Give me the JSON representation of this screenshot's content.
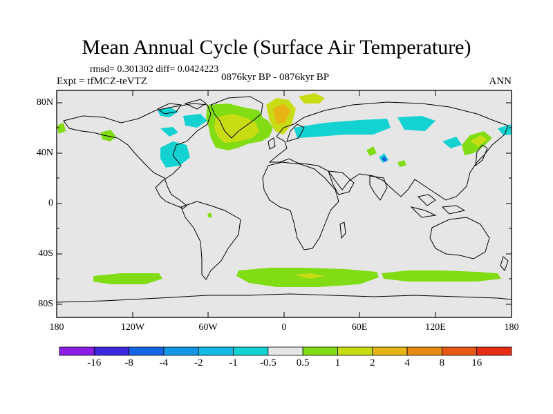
{
  "title": "Mean Annual Cycle (Surface Air Temperature)",
  "stats_line": "rmsd= 0.301302 diff= 0.0424223",
  "experiment": "Expt = tfMCZ-teVTZ",
  "period": "0876kyr BP - 0876kyr BP",
  "season": "ANN",
  "lat_labels": [
    "80N",
    "40N",
    "0",
    "40S",
    "80S"
  ],
  "lon_labels": [
    "180",
    "120W",
    "60W",
    "0",
    "60E",
    "120E",
    "180"
  ],
  "colorbar": {
    "labels": [
      "-16",
      "-8",
      "-4",
      "-2",
      "-1",
      "-0.5",
      "0.5",
      "1",
      "2",
      "4",
      "8",
      "16"
    ],
    "colors": [
      "#8c1ee6",
      "#3c28dc",
      "#1464e6",
      "#1496e6",
      "#14b9e6",
      "#14d2d2",
      "#e6e6e6",
      "#82dc14",
      "#c8dc14",
      "#e6b414",
      "#e68c14",
      "#e65a14",
      "#e62d14"
    ]
  },
  "colors": {
    "background_field": "#e6e6e6",
    "coastline": "#000000"
  }
}
